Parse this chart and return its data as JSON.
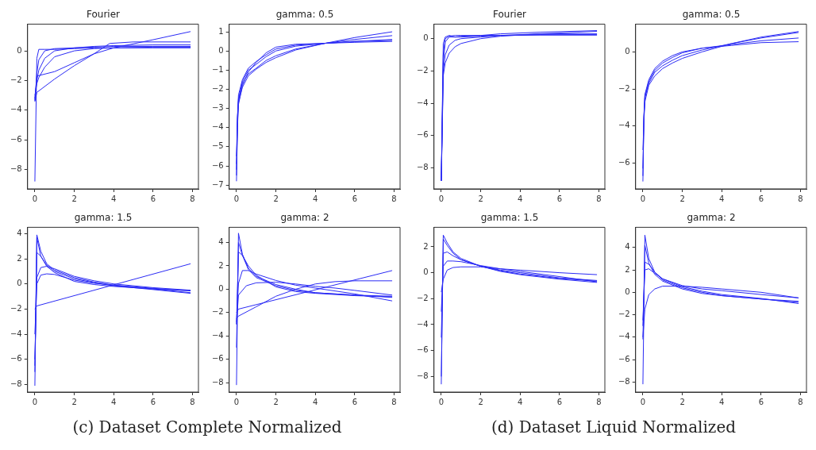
{
  "chart_data": [
    {
      "type": "line",
      "title": "Fourier",
      "xlim": [
        -0.37,
        8.3
      ],
      "ylim": [
        -9.3,
        1.8
      ],
      "xticks": [
        0,
        2,
        4,
        6,
        8
      ],
      "yticks": [
        -8,
        -6,
        -4,
        -2,
        0
      ],
      "grid": false,
      "annotations": [
        "(c) Dataset Complete Normalized"
      ],
      "series": [
        {
          "color": "#2b2bf5",
          "x": [
            0,
            0.1,
            0.2,
            0.5,
            1,
            2,
            3,
            4,
            6,
            7.9
          ],
          "values": [
            -8.8,
            -0.5,
            0.1,
            0.1,
            0.1,
            0.15,
            0.2,
            0.2,
            0.2,
            0.2
          ]
        },
        {
          "color": "#2b2bf5",
          "x": [
            0,
            0.1,
            0.2,
            0.5,
            1,
            2,
            3,
            4,
            6,
            7.9
          ],
          "values": [
            -3.4,
            -1.5,
            -0.6,
            0,
            0.15,
            0.2,
            0.25,
            0.3,
            0.3,
            0.3
          ]
        },
        {
          "color": "#2b2bf5",
          "x": [
            0,
            0.1,
            0.2,
            0.5,
            1,
            2,
            3,
            4,
            6,
            7.9
          ],
          "values": [
            -3.2,
            -2,
            -1.3,
            -0.5,
            0,
            0.2,
            0.3,
            0.35,
            0.4,
            0.4
          ]
        },
        {
          "color": "#2b2bf5",
          "x": [
            0,
            0.1,
            0.2,
            0.5,
            1,
            2,
            3,
            4,
            6,
            7.9
          ],
          "values": [
            -3,
            -2.2,
            -1.8,
            -1.1,
            -0.4,
            0,
            0.15,
            0.2,
            0.25,
            0.25
          ]
        },
        {
          "color": "#2b2bf5",
          "x": [
            0,
            0.1,
            1,
            2,
            3,
            4,
            6,
            7.9
          ],
          "values": [
            -3.3,
            -1.7,
            -1.4,
            -0.8,
            -0.2,
            0.2,
            0.75,
            1.3
          ]
        },
        {
          "color": "#2b2bf5",
          "x": [
            0,
            0.1,
            1,
            2,
            3,
            3.8,
            5,
            7.9
          ],
          "values": [
            -3.4,
            -2.8,
            -1.9,
            -1,
            -0.2,
            0.5,
            0.6,
            0.6
          ]
        }
      ]
    },
    {
      "type": "line",
      "title": "gamma: 0.5",
      "xlim": [
        -0.37,
        8.3
      ],
      "ylim": [
        -7.2,
        1.4
      ],
      "xticks": [
        0,
        2,
        4,
        6,
        8
      ],
      "yticks": [
        -7,
        -6,
        -5,
        -4,
        -3,
        -2,
        -1,
        0,
        1
      ],
      "grid": false,
      "series": [
        {
          "color": "#2b2bf5",
          "x": [
            0,
            0.05,
            0.1,
            0.3,
            0.6,
            1,
            1.5,
            2,
            3,
            4.5,
            6,
            7.9
          ],
          "values": [
            -6.8,
            -4,
            -2.8,
            -1.8,
            -1.1,
            -0.6,
            -0.1,
            0.2,
            0.35,
            0.4,
            0.45,
            0.5
          ]
        },
        {
          "color": "#2b2bf5",
          "x": [
            0,
            0.05,
            0.1,
            0.3,
            0.6,
            1,
            1.5,
            2,
            3,
            4.5,
            6,
            7.9
          ],
          "values": [
            -6.2,
            -3.5,
            -2.5,
            -1.6,
            -1,
            -0.7,
            -0.3,
            0,
            0.25,
            0.4,
            0.5,
            0.55
          ]
        },
        {
          "color": "#2b2bf5",
          "x": [
            0,
            0.05,
            0.1,
            0.3,
            0.6,
            1,
            1.5,
            2,
            3,
            4.5,
            6,
            7.9
          ],
          "values": [
            -5.5,
            -3.5,
            -2.6,
            -1.7,
            -1.2,
            -0.9,
            -0.5,
            -0.25,
            0.1,
            0.4,
            0.6,
            0.8
          ]
        },
        {
          "color": "#2b2bf5",
          "x": [
            0,
            0.05,
            0.1,
            0.3,
            0.6,
            1,
            1.5,
            2,
            3,
            4.5,
            6,
            7.9
          ],
          "values": [
            -6.5,
            -3.8,
            -2.7,
            -1.9,
            -1.3,
            -0.95,
            -0.6,
            -0.35,
            0.05,
            0.4,
            0.7,
            1
          ]
        },
        {
          "color": "#2b2bf5",
          "x": [
            0,
            0.05,
            0.1,
            0.3,
            0.6,
            1,
            1.5,
            2,
            3,
            4.5,
            6,
            7.9
          ],
          "values": [
            -5.9,
            -3.4,
            -2.3,
            -1.5,
            -0.9,
            -0.55,
            -0.2,
            0.1,
            0.3,
            0.4,
            0.5,
            0.6
          ]
        }
      ]
    },
    {
      "type": "line",
      "title": "gamma: 1.5",
      "xlim": [
        -0.37,
        8.3
      ],
      "ylim": [
        -8.6,
        4.5
      ],
      "xticks": [
        0,
        2,
        4,
        6,
        8
      ],
      "yticks": [
        -8,
        -6,
        -4,
        -2,
        0,
        2,
        4
      ],
      "grid": false,
      "series": [
        {
          "color": "#2b2bf5",
          "x": [
            0,
            0.1,
            0.3,
            0.6,
            1,
            2,
            3,
            4,
            6,
            7.9
          ],
          "values": [
            -8.1,
            3.9,
            2.6,
            1.6,
            1.1,
            0.5,
            0.15,
            -0.1,
            -0.4,
            -0.7
          ]
        },
        {
          "color": "#2b2bf5",
          "x": [
            0,
            0.1,
            0.3,
            0.6,
            1,
            2,
            3,
            4,
            6,
            7.9
          ],
          "values": [
            -6.5,
            2.5,
            2.2,
            1.5,
            1,
            0.4,
            0.1,
            -0.15,
            -0.45,
            -0.75
          ]
        },
        {
          "color": "#2b2bf5",
          "x": [
            0,
            0.1,
            0.3,
            0.6,
            1,
            2,
            3,
            4,
            6,
            7.9
          ],
          "values": [
            -6,
            0.5,
            1.3,
            1.4,
            1.2,
            0.6,
            0.25,
            0,
            -0.3,
            -0.5
          ]
        },
        {
          "color": "#2b2bf5",
          "x": [
            0,
            0.1,
            0.3,
            0.6,
            1,
            2,
            3,
            4,
            6,
            7.9
          ],
          "values": [
            -4,
            0,
            0.7,
            0.8,
            0.75,
            0.3,
            0.05,
            -0.1,
            -0.35,
            -0.55
          ]
        },
        {
          "color": "#2b2bf5",
          "x": [
            0,
            0.1,
            7.9
          ],
          "values": [
            -2,
            -1.75,
            1.6
          ]
        },
        {
          "color": "#2b2bf5",
          "x": [
            0,
            0.1,
            0.3,
            0.6,
            1,
            2,
            3,
            4,
            6,
            7.9
          ],
          "values": [
            -7,
            3.7,
            2.2,
            1.4,
            0.9,
            0.2,
            -0.05,
            -0.2,
            -0.4,
            -0.55
          ]
        }
      ]
    },
    {
      "type": "line",
      "title": "gamma: 2",
      "xlim": [
        -0.37,
        8.3
      ],
      "ylim": [
        -8.8,
        5.3
      ],
      "xticks": [
        0,
        2,
        4,
        6,
        8
      ],
      "yticks": [
        -8,
        -6,
        -4,
        -2,
        0,
        2,
        4
      ],
      "grid": false,
      "series": [
        {
          "color": "#2b2bf5",
          "x": [
            0,
            0.1,
            0.3,
            0.6,
            1,
            2,
            3,
            4,
            6,
            7.9
          ],
          "values": [
            -8.2,
            4.8,
            3,
            1.8,
            1.1,
            0.4,
            0,
            -0.3,
            -0.5,
            -0.6
          ]
        },
        {
          "color": "#2b2bf5",
          "x": [
            0,
            0.1,
            0.3,
            0.6,
            1,
            2,
            3,
            4,
            6,
            7.9
          ],
          "values": [
            -5,
            4,
            2.9,
            1.7,
            1,
            0.3,
            -0.1,
            -0.3,
            -0.5,
            -0.7
          ]
        },
        {
          "color": "#2b2bf5",
          "x": [
            0,
            0.1,
            0.3,
            0.6,
            1,
            2,
            3,
            4,
            6,
            7.9
          ],
          "values": [
            -3,
            3.2,
            2.9,
            2,
            1.2,
            0.2,
            -0.2,
            -0.35,
            -0.55,
            -0.65
          ]
        },
        {
          "color": "#2b2bf5",
          "x": [
            0,
            0.1,
            0.3,
            0.6,
            1,
            2,
            3,
            4,
            6,
            7.9
          ],
          "values": [
            -2.8,
            0.5,
            1.6,
            1.6,
            1.3,
            0.75,
            0.35,
            0.1,
            -0.4,
            -1
          ]
        },
        {
          "color": "#2b2bf5",
          "x": [
            0,
            0.1,
            0.5,
            1,
            2,
            3,
            4,
            5,
            6,
            7.9
          ],
          "values": [
            -3,
            -0.5,
            0.3,
            0.55,
            0.6,
            0.45,
            0.25,
            0.1,
            -0.1,
            -0.5
          ]
        },
        {
          "color": "#2b2bf5",
          "x": [
            0,
            0.1,
            1,
            2,
            3,
            4,
            5,
            6,
            7.9
          ],
          "values": [
            -2.5,
            -2.3,
            -1.5,
            -0.6,
            0,
            0.45,
            0.65,
            0.72,
            0.72
          ]
        },
        {
          "color": "#2b2bf5",
          "x": [
            0,
            0.1,
            7.9
          ],
          "values": [
            -2,
            -1.7,
            1.6
          ]
        }
      ]
    },
    {
      "type": "line",
      "title": "Fourier",
      "xlim": [
        -0.37,
        8.3
      ],
      "ylim": [
        -9.3,
        0.9
      ],
      "xticks": [
        0,
        2,
        4,
        6,
        8
      ],
      "yticks": [
        -8,
        -6,
        -4,
        -2,
        0
      ],
      "grid": false,
      "annotations": [
        "(d) Dataset Liquid Normalized"
      ],
      "series": [
        {
          "color": "#2b2bf5",
          "x": [
            0,
            0.1,
            0.2,
            0.4,
            0.7,
            1,
            2,
            3,
            5,
            7.9
          ],
          "values": [
            -8.8,
            -0.3,
            0.1,
            0.2,
            0.1,
            0.1,
            0.15,
            0.2,
            0.25,
            0.25
          ]
        },
        {
          "color": "#2b2bf5",
          "x": [
            0,
            0.1,
            0.2,
            0.4,
            0.7,
            1,
            2,
            3,
            5,
            7.9
          ],
          "values": [
            -8.8,
            -1.5,
            -0.2,
            0.1,
            0.1,
            0.15,
            0.2,
            0.3,
            0.4,
            0.5
          ]
        },
        {
          "color": "#2b2bf5",
          "x": [
            0,
            0.1,
            0.2,
            0.4,
            0.7,
            1,
            2,
            3,
            5,
            7.9
          ],
          "values": [
            -8.8,
            -2,
            -1,
            -0.4,
            -0.1,
            0,
            0.1,
            0.2,
            0.3,
            0.3
          ]
        },
        {
          "color": "#2b2bf5",
          "x": [
            0,
            0.1,
            0.2,
            0.4,
            0.7,
            1,
            2,
            3,
            5,
            7.9
          ],
          "values": [
            -8.8,
            -2.3,
            -1.5,
            -0.9,
            -0.5,
            -0.3,
            0,
            0.15,
            0.3,
            0.45
          ]
        },
        {
          "color": "#2b2bf5",
          "x": [
            0,
            0.1,
            0.2,
            0.4,
            0.7,
            1,
            2,
            3,
            5,
            7.9
          ],
          "values": [
            -8.8,
            -1,
            0,
            0.15,
            0.2,
            0.2,
            0.2,
            0.2,
            0.22,
            0.22
          ]
        }
      ]
    },
    {
      "type": "line",
      "title": "gamma: 0.5",
      "xlim": [
        -0.37,
        8.3
      ],
      "ylim": [
        -7.4,
        1.5
      ],
      "xticks": [
        0,
        2,
        4,
        6,
        8
      ],
      "yticks": [
        -6,
        -4,
        -2,
        0
      ],
      "grid": false,
      "series": [
        {
          "color": "#2b2bf5",
          "x": [
            0,
            0.05,
            0.1,
            0.3,
            0.6,
            1,
            1.5,
            2,
            3,
            4.5,
            6,
            7.9
          ],
          "values": [
            -7,
            -3.5,
            -2.3,
            -1.5,
            -0.9,
            -0.5,
            -0.2,
            0,
            0.2,
            0.35,
            0.5,
            0.55
          ]
        },
        {
          "color": "#2b2bf5",
          "x": [
            0,
            0.05,
            0.1,
            0.3,
            0.6,
            1,
            1.5,
            2,
            3,
            4.5,
            6,
            7.9
          ],
          "values": [
            -6.3,
            -3.5,
            -2.4,
            -1.6,
            -1,
            -0.6,
            -0.3,
            -0.05,
            0.2,
            0.4,
            0.6,
            0.75
          ]
        },
        {
          "color": "#2b2bf5",
          "x": [
            0,
            0.05,
            0.1,
            0.3,
            0.6,
            1,
            1.5,
            2,
            3,
            4.5,
            6,
            7.9
          ],
          "values": [
            -5.3,
            -3.8,
            -2.7,
            -1.8,
            -1.3,
            -0.9,
            -0.6,
            -0.35,
            0,
            0.45,
            0.8,
            1.1
          ]
        },
        {
          "color": "#2b2bf5",
          "x": [
            0,
            0.05,
            0.1,
            0.3,
            0.6,
            1,
            1.5,
            2,
            3,
            4.5,
            6,
            7.9
          ],
          "values": [
            -6.7,
            -3.6,
            -2.5,
            -1.7,
            -1.1,
            -0.75,
            -0.45,
            -0.2,
            0.1,
            0.45,
            0.75,
            1.05
          ]
        }
      ]
    },
    {
      "type": "line",
      "title": "gamma: 1.5",
      "xlim": [
        -0.37,
        8.3
      ],
      "ylim": [
        -9.2,
        3.5
      ],
      "xticks": [
        0,
        2,
        4,
        6,
        8
      ],
      "yticks": [
        -8,
        -6,
        -4,
        -2,
        0,
        2
      ],
      "grid": false,
      "series": [
        {
          "color": "#2b2bf5",
          "x": [
            0,
            0.1,
            0.3,
            0.6,
            1,
            2,
            3,
            4,
            6,
            7.9
          ],
          "values": [
            -8.6,
            2.9,
            2.3,
            1.6,
            1.1,
            0.5,
            0.1,
            -0.15,
            -0.5,
            -0.75
          ]
        },
        {
          "color": "#2b2bf5",
          "x": [
            0,
            0.1,
            0.3,
            0.6,
            1,
            2,
            3,
            4,
            6,
            7.9
          ],
          "values": [
            -8,
            2.6,
            2.1,
            1.5,
            1,
            0.5,
            0.15,
            -0.1,
            -0.45,
            -0.65
          ]
        },
        {
          "color": "#2b2bf5",
          "x": [
            0,
            0.1,
            0.3,
            0.6,
            1,
            2,
            3,
            4,
            6,
            7.9
          ],
          "values": [
            -5,
            1.5,
            1.6,
            1.3,
            1,
            0.5,
            0.2,
            0,
            -0.4,
            -0.6
          ]
        },
        {
          "color": "#2b2bf5",
          "x": [
            0,
            0.1,
            0.3,
            0.6,
            1,
            2,
            3,
            4,
            6,
            7.9
          ],
          "values": [
            -3,
            0.5,
            0.9,
            0.9,
            0.85,
            0.55,
            0.3,
            0.2,
            0,
            -0.15
          ]
        },
        {
          "color": "#2b2bf5",
          "x": [
            0,
            0.1,
            0.3,
            0.6,
            1,
            2,
            3,
            4,
            6,
            7.9
          ],
          "values": [
            -1.5,
            -0.5,
            0.2,
            0.4,
            0.45,
            0.45,
            0.3,
            0.1,
            -0.3,
            -0.7
          ]
        }
      ]
    },
    {
      "type": "line",
      "title": "gamma: 2",
      "xlim": [
        -0.37,
        8.3
      ],
      "ylim": [
        -8.9,
        5.8
      ],
      "xticks": [
        0,
        2,
        4,
        6,
        8
      ],
      "yticks": [
        -8,
        -6,
        -4,
        -2,
        0,
        2,
        4
      ],
      "grid": false,
      "series": [
        {
          "color": "#2b2bf5",
          "x": [
            0,
            0.1,
            0.3,
            0.6,
            1,
            2,
            3,
            4,
            6,
            7.9
          ],
          "values": [
            -8.2,
            5.1,
            3,
            1.8,
            1.1,
            0.4,
            0,
            -0.3,
            -0.6,
            -0.9
          ]
        },
        {
          "color": "#2b2bf5",
          "x": [
            0,
            0.1,
            0.3,
            0.6,
            1,
            2,
            3,
            4,
            6,
            7.9
          ],
          "values": [
            -4.2,
            4.2,
            2.6,
            1.6,
            1,
            0.3,
            -0.1,
            -0.3,
            -0.6,
            -0.8
          ]
        },
        {
          "color": "#2b2bf5",
          "x": [
            0,
            0.1,
            0.3,
            0.6,
            1,
            2,
            3,
            4,
            6,
            7.9
          ],
          "values": [
            -3,
            2.7,
            2.5,
            1.8,
            1.2,
            0.5,
            0.1,
            -0.2,
            -0.55,
            -1
          ]
        },
        {
          "color": "#2b2bf5",
          "x": [
            0,
            0.1,
            0.3,
            0.6,
            1,
            2,
            3,
            4,
            6,
            7.9
          ],
          "values": [
            -2.5,
            2,
            2.1,
            1.7,
            1.2,
            0.6,
            0.3,
            0.15,
            -0.2,
            -0.5
          ]
        },
        {
          "color": "#2b2bf5",
          "x": [
            0,
            0.1,
            0.3,
            0.6,
            1,
            2,
            3,
            4,
            6,
            7.9
          ],
          "values": [
            -4,
            -1.5,
            -0.2,
            0.3,
            0.55,
            0.55,
            0.45,
            0.3,
            0,
            -0.5
          ]
        }
      ]
    }
  ]
}
